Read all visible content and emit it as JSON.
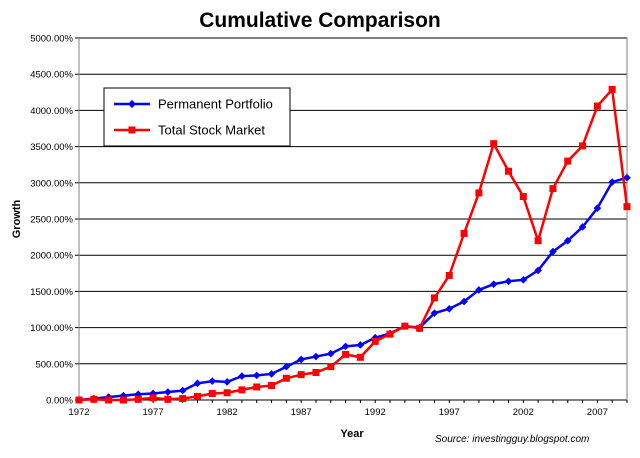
{
  "chart_data": {
    "type": "line",
    "title": "Cumulative Comparison",
    "xlabel": "Year",
    "ylabel": "Growth",
    "source": "Source: investingguy.blogspot.com",
    "ylim": [
      0,
      5000
    ],
    "xlim": [
      1972,
      2009
    ],
    "y_ticks": [
      "0.00%",
      "500.00%",
      "1000.00%",
      "1500.00%",
      "2000.00%",
      "2500.00%",
      "3000.00%",
      "3500.00%",
      "4000.00%",
      "4500.00%",
      "5000.00%"
    ],
    "x_ticks": [
      "1972",
      "1977",
      "1982",
      "1987",
      "1992",
      "1997",
      "2002",
      "2007"
    ],
    "grid": "horizontal",
    "legend_position": "top-left",
    "colors": {
      "permanent": "#0000ff",
      "stock": "#ff0000",
      "grid": "#000000"
    },
    "x": [
      1972,
      1973,
      1974,
      1975,
      1976,
      1977,
      1978,
      1979,
      1980,
      1981,
      1982,
      1983,
      1984,
      1985,
      1986,
      1987,
      1988,
      1989,
      1990,
      1991,
      1992,
      1993,
      1994,
      1995,
      1996,
      1997,
      1998,
      1999,
      2000,
      2001,
      2002,
      2003,
      2004,
      2005,
      2006,
      2007,
      2008,
      2009
    ],
    "series": [
      {
        "name": "Permanent Portfolio",
        "marker": "diamond",
        "values": [
          0,
          20,
          40,
          60,
          80,
          90,
          110,
          130,
          230,
          260,
          250,
          330,
          340,
          360,
          460,
          560,
          600,
          640,
          740,
          760,
          860,
          920,
          1020,
          1000,
          1200,
          1260,
          1360,
          1520,
          1600,
          1640,
          1660,
          1790,
          2050,
          2200,
          2390,
          2650,
          3010,
          3070
        ]
      },
      {
        "name": "Total Stock Market",
        "marker": "square",
        "values": [
          0,
          10,
          0,
          0,
          10,
          30,
          10,
          20,
          50,
          90,
          100,
          140,
          180,
          200,
          300,
          350,
          380,
          460,
          630,
          590,
          810,
          910,
          1020,
          990,
          1410,
          1720,
          2300,
          2860,
          3540,
          3160,
          2810,
          2200,
          2920,
          3300,
          3510,
          4060,
          4290,
          2670
        ]
      }
    ]
  }
}
